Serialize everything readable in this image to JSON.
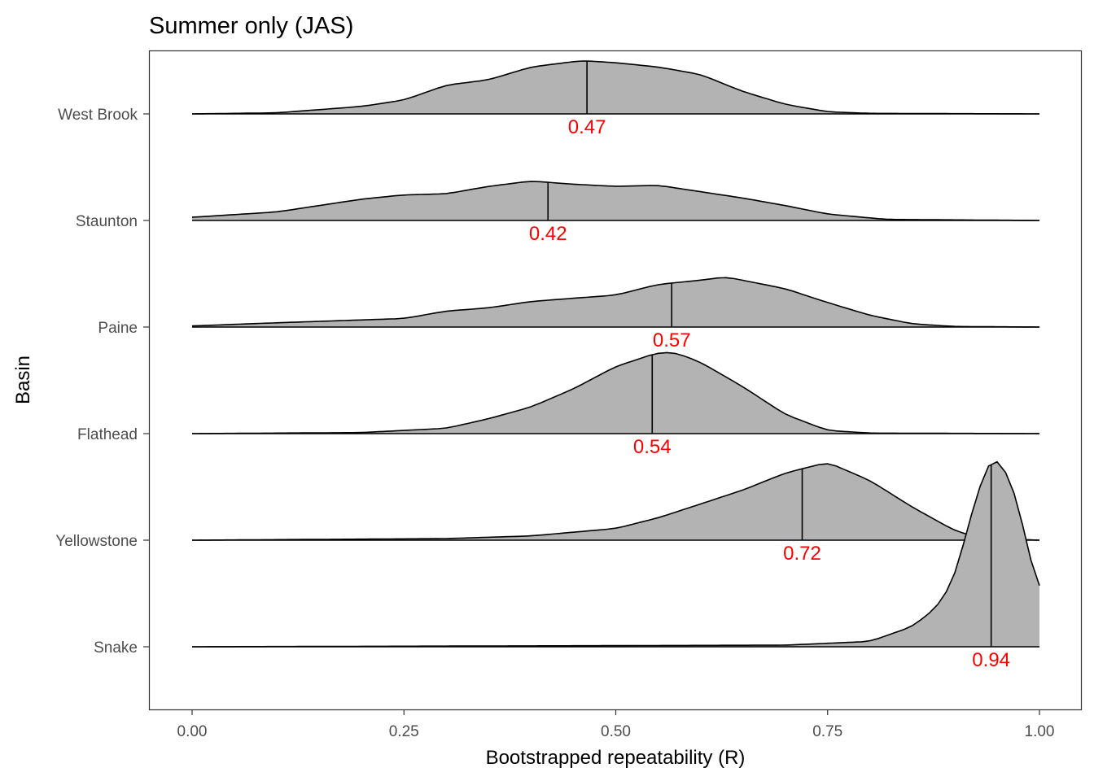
{
  "chart_data": {
    "type": "ridgeline-density",
    "title": "Summer only (JAS)",
    "xlabel": "Bootstrapped repeatability (R)",
    "ylabel": "Basin",
    "xlim": [
      0,
      1
    ],
    "x_ticks": [
      "0.00",
      "0.25",
      "0.50",
      "0.75",
      "1.00"
    ],
    "x_tick_values": [
      0,
      0.25,
      0.5,
      0.75,
      1
    ],
    "grid": false,
    "fill_color": "#b3b3b3",
    "median_label_color": "#ff0000",
    "series": [
      {
        "name": "West Brook",
        "median": 0.466,
        "median_label": "0.47",
        "density": [
          [
            0,
            0
          ],
          [
            0.1,
            0.01
          ],
          [
            0.2,
            0.07
          ],
          [
            0.25,
            0.13
          ],
          [
            0.3,
            0.27
          ],
          [
            0.35,
            0.32
          ],
          [
            0.4,
            0.44
          ],
          [
            0.46,
            0.5
          ],
          [
            0.5,
            0.48
          ],
          [
            0.55,
            0.44
          ],
          [
            0.6,
            0.37
          ],
          [
            0.65,
            0.21
          ],
          [
            0.7,
            0.09
          ],
          [
            0.75,
            0.02
          ],
          [
            0.8,
            0.005
          ],
          [
            1,
            0
          ]
        ]
      },
      {
        "name": "Staunton",
        "median": 0.42,
        "median_label": "0.42",
        "density": [
          [
            0,
            0.03
          ],
          [
            0.1,
            0.08
          ],
          [
            0.2,
            0.2
          ],
          [
            0.25,
            0.24
          ],
          [
            0.3,
            0.25
          ],
          [
            0.35,
            0.32
          ],
          [
            0.4,
            0.37
          ],
          [
            0.45,
            0.34
          ],
          [
            0.5,
            0.32
          ],
          [
            0.55,
            0.33
          ],
          [
            0.6,
            0.27
          ],
          [
            0.65,
            0.21
          ],
          [
            0.7,
            0.14
          ],
          [
            0.75,
            0.06
          ],
          [
            0.82,
            0.01
          ],
          [
            1,
            0
          ]
        ]
      },
      {
        "name": "Paine",
        "median": 0.566,
        "median_label": "0.57",
        "density": [
          [
            0,
            0.01
          ],
          [
            0.1,
            0.04
          ],
          [
            0.25,
            0.08
          ],
          [
            0.3,
            0.15
          ],
          [
            0.35,
            0.18
          ],
          [
            0.4,
            0.24
          ],
          [
            0.5,
            0.3
          ],
          [
            0.55,
            0.4
          ],
          [
            0.6,
            0.44
          ],
          [
            0.63,
            0.47
          ],
          [
            0.7,
            0.36
          ],
          [
            0.75,
            0.23
          ],
          [
            0.8,
            0.11
          ],
          [
            0.85,
            0.03
          ],
          [
            0.9,
            0.005
          ],
          [
            1,
            0
          ]
        ]
      },
      {
        "name": "Flathead",
        "median": 0.543,
        "median_label": "0.54",
        "density": [
          [
            0,
            0
          ],
          [
            0.2,
            0.01
          ],
          [
            0.3,
            0.05
          ],
          [
            0.35,
            0.14
          ],
          [
            0.4,
            0.25
          ],
          [
            0.45,
            0.42
          ],
          [
            0.5,
            0.63
          ],
          [
            0.55,
            0.76
          ],
          [
            0.57,
            0.76
          ],
          [
            0.6,
            0.67
          ],
          [
            0.65,
            0.44
          ],
          [
            0.7,
            0.18
          ],
          [
            0.75,
            0.03
          ],
          [
            0.8,
            0.005
          ],
          [
            1,
            0
          ]
        ]
      },
      {
        "name": "Yellowstone",
        "median": 0.72,
        "median_label": "0.72",
        "density": [
          [
            0,
            0
          ],
          [
            0.3,
            0.015
          ],
          [
            0.4,
            0.04
          ],
          [
            0.5,
            0.11
          ],
          [
            0.55,
            0.21
          ],
          [
            0.6,
            0.34
          ],
          [
            0.65,
            0.47
          ],
          [
            0.7,
            0.63
          ],
          [
            0.75,
            0.73
          ],
          [
            0.8,
            0.56
          ],
          [
            0.85,
            0.31
          ],
          [
            0.9,
            0.09
          ],
          [
            0.93,
            0.02
          ],
          [
            1,
            0
          ]
        ]
      },
      {
        "name": "Snake",
        "median": 0.943,
        "median_label": "0.94",
        "density": [
          [
            0,
            0
          ],
          [
            0.7,
            0.015
          ],
          [
            0.8,
            0.05
          ],
          [
            0.85,
            0.19
          ],
          [
            0.88,
            0.38
          ],
          [
            0.9,
            0.65
          ],
          [
            0.92,
            1.26
          ],
          [
            0.94,
            1.75
          ],
          [
            0.95,
            1.78
          ],
          [
            0.97,
            1.49
          ],
          [
            0.99,
            0.8
          ],
          [
            1,
            0.5
          ]
        ]
      }
    ]
  }
}
